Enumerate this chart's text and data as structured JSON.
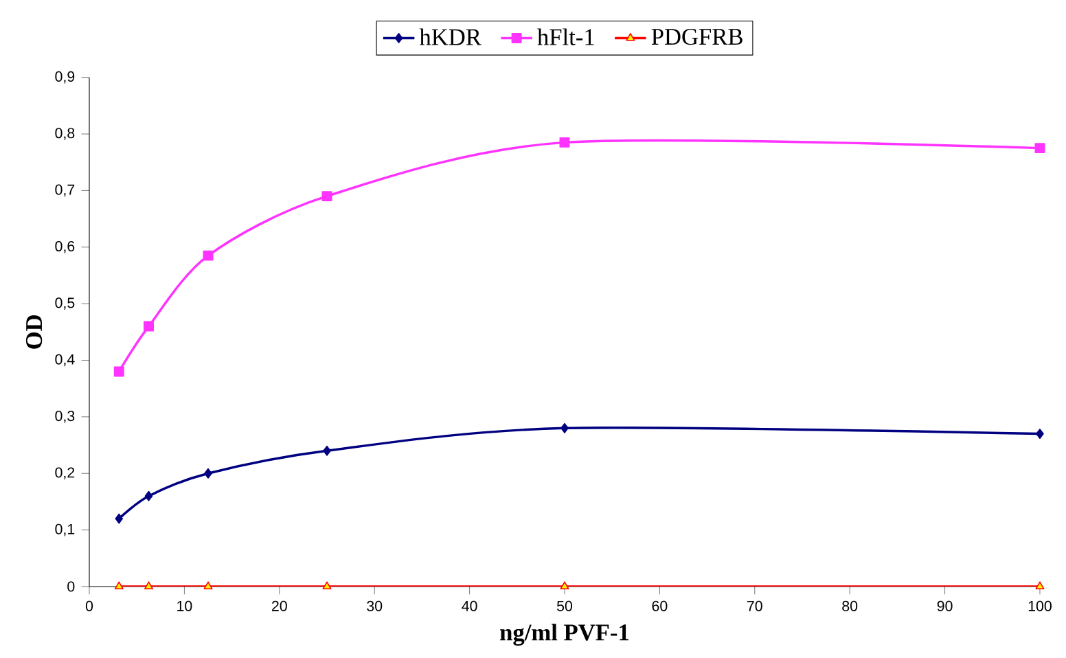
{
  "chart_data": {
    "type": "line",
    "xlabel": "ng/ml PVF-1",
    "ylabel": "OD",
    "x": [
      3.125,
      6.25,
      12.5,
      25,
      50,
      100
    ],
    "series": [
      {
        "name": "hKDR",
        "color": "#000080",
        "marker": "diamond",
        "values": [
          0.12,
          0.16,
          0.2,
          0.24,
          0.28,
          0.27
        ]
      },
      {
        "name": "hFlt-1",
        "color": "#ff33ff",
        "marker": "square",
        "values": [
          0.38,
          0.46,
          0.585,
          0.69,
          0.785,
          0.775
        ]
      },
      {
        "name": "PDGFRB",
        "color": "#ff0000",
        "marker": "triangle",
        "values": [
          0,
          0,
          0,
          0,
          0,
          0
        ]
      }
    ],
    "xlim": [
      0,
      100
    ],
    "xticks": [
      0,
      10,
      20,
      30,
      40,
      50,
      60,
      70,
      80,
      90,
      100
    ],
    "ylim": [
      0,
      0.9
    ],
    "yticks": [
      {
        "value": 0,
        "label": "0"
      },
      {
        "value": 0.1,
        "label": "0,1"
      },
      {
        "value": 0.2,
        "label": "0,2"
      },
      {
        "value": 0.3,
        "label": "0,3"
      },
      {
        "value": 0.4,
        "label": "0,4"
      },
      {
        "value": 0.5,
        "label": "0,5"
      },
      {
        "value": 0.6,
        "label": "0,6"
      },
      {
        "value": 0.7,
        "label": "0,7"
      },
      {
        "value": 0.8,
        "label": "0,8"
      },
      {
        "value": 0.9,
        "label": "0,9"
      }
    ],
    "legend": "top",
    "grid": false,
    "line_style": "solid"
  }
}
